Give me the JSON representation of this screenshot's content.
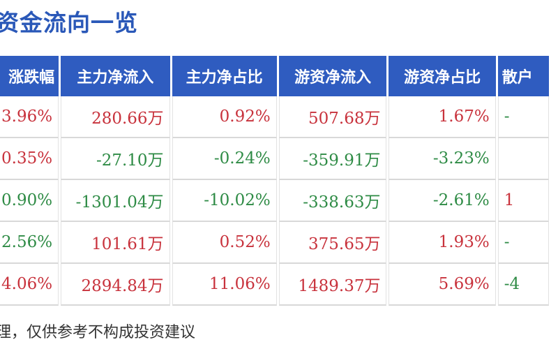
{
  "title": "资金流向一览",
  "table": {
    "headers": [
      "涨跌幅",
      "主力净流入",
      "主力净占比",
      "游资净流入",
      "游资净占比",
      "散户"
    ],
    "rows": [
      {
        "cells": [
          "3.96%",
          "280.66万",
          "0.92%",
          "507.68万",
          "1.67%",
          "-"
        ],
        "colors": [
          "up",
          "up",
          "up",
          "up",
          "up",
          "down"
        ]
      },
      {
        "cells": [
          "0.35%",
          "-27.10万",
          "-0.24%",
          "-359.91万",
          "-3.23%",
          ""
        ],
        "colors": [
          "up",
          "down",
          "down",
          "down",
          "down",
          "up"
        ]
      },
      {
        "cells": [
          "0.90%",
          "-1301.04万",
          "-10.02%",
          "-338.63万",
          "-2.61%",
          "1"
        ],
        "colors": [
          "down",
          "down",
          "down",
          "down",
          "down",
          "up"
        ]
      },
      {
        "cells": [
          "2.56%",
          "101.61万",
          "0.52%",
          "375.65万",
          "1.93%",
          "-"
        ],
        "colors": [
          "down",
          "up",
          "up",
          "up",
          "up",
          "down"
        ]
      },
      {
        "cells": [
          "4.06%",
          "2894.84万",
          "11.06%",
          "1489.37万",
          "5.69%",
          "-4"
        ],
        "colors": [
          "up",
          "up",
          "up",
          "up",
          "up",
          "down"
        ]
      }
    ]
  },
  "footer": "理，仅供参考不构成投资建议",
  "colors": {
    "header_bg": "#2f5cc0",
    "title": "#2a58b8",
    "up": "#c8323c",
    "down": "#2e8b45"
  }
}
